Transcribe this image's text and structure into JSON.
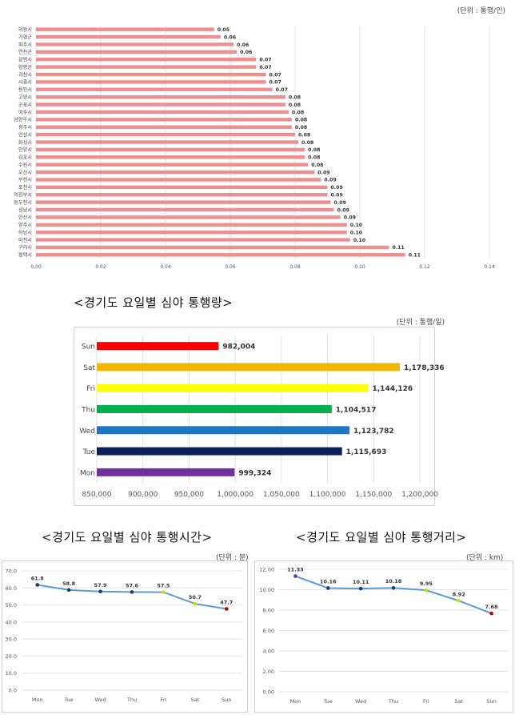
{
  "charts": {
    "city": {
      "unit": "(단위 : 통행/인)"
    },
    "dayVolume": {
      "title": "<경기도 요일별 심야 통행량>",
      "unit": "(단위 : 통행/일)"
    },
    "dayTime": {
      "title": "<경기도 요일별 심야 통행시간>",
      "unit": "(단위 : 분)"
    },
    "dayDist": {
      "title": "<경기도 요일별 심야 통행거리>",
      "unit": "(단위 : km)"
    }
  },
  "colors": {
    "cityBar": "#ef8e8e",
    "line": "#5b9bd5",
    "marker": "#2e4e8a"
  },
  "chart_data": [
    {
      "type": "bar",
      "orientation": "horizontal",
      "categories": [
        "의왕시",
        "가평군",
        "파주시",
        "연천군",
        "광명시",
        "양평군",
        "과천시",
        "시흥시",
        "용인시",
        "고양시",
        "군포시",
        "여주시",
        "남양주시",
        "광주시",
        "안성시",
        "화성시",
        "안양시",
        "김포시",
        "수원시",
        "오산시",
        "부천시",
        "포천시",
        "의정부시",
        "동두천시",
        "성남시",
        "안산시",
        "양주시",
        "하남시",
        "이천시",
        "구리시",
        "평택시"
      ],
      "values": [
        0.055,
        0.057,
        0.061,
        0.062,
        0.068,
        0.068,
        0.071,
        0.071,
        0.073,
        0.077,
        0.077,
        0.078,
        0.079,
        0.079,
        0.08,
        0.081,
        0.083,
        0.083,
        0.084,
        0.086,
        0.088,
        0.09,
        0.09,
        0.091,
        0.092,
        0.094,
        0.096,
        0.096,
        0.097,
        0.109,
        0.114
      ],
      "labels": [
        "0.05",
        "0.06",
        "0.06",
        "0.06",
        "0.07",
        "0.07",
        "0.07",
        "0.07",
        "0.07",
        "0.08",
        "0.08",
        "0.08",
        "0.08",
        "0.08",
        "0.08",
        "0.08",
        "0.08",
        "0.08",
        "0.08",
        "0.09",
        "0.09",
        "0.09",
        "0.09",
        "0.09",
        "0.09",
        "0.09",
        "0.10",
        "0.10",
        "0.10",
        "0.11",
        "0.11"
      ],
      "xlim": [
        0,
        0.14
      ],
      "xticks": [
        "0.00",
        "0.02",
        "0.04",
        "0.06",
        "0.08",
        "0.10",
        "0.12",
        "0.14"
      ]
    },
    {
      "type": "bar",
      "orientation": "horizontal",
      "categories": [
        "Sun",
        "Sat",
        "Fri",
        "Thu",
        "Wed",
        "Tue",
        "Mon"
      ],
      "values": [
        982004,
        1178336,
        1144126,
        1104517,
        1123782,
        1115693,
        999324
      ],
      "labels": [
        "982,004",
        "1,178,336",
        "1,144,126",
        "1,104,517",
        "1,123,782",
        "1,115,693",
        "999,324"
      ],
      "colors": [
        "#ff0000",
        "#f2b705",
        "#ffff00",
        "#00b050",
        "#1f77c4",
        "#0b1f5c",
        "#7030a0"
      ],
      "xlim": [
        850000,
        1200000
      ],
      "xticks": [
        "850,000",
        "900,000",
        "950,000",
        "1,000,000",
        "1,050,000",
        "1,100,000",
        "1,150,000",
        "1,200,000"
      ]
    },
    {
      "type": "line",
      "categories": [
        "Mon",
        "Tue",
        "Wed",
        "Thu",
        "Fri",
        "Sat",
        "Sun"
      ],
      "values": [
        61.8,
        58.8,
        57.9,
        57.6,
        57.5,
        50.7,
        47.7
      ],
      "labels": [
        "61.8",
        "58.8",
        "57.9",
        "57.6",
        "57.5",
        "50.7",
        "47.7"
      ],
      "markerColors": [
        "#1f3b70",
        "#1f3b70",
        "#1f3b70",
        "#1f3b70",
        "#c8e000",
        "#c8e000",
        "#c00000"
      ],
      "ylim": [
        0,
        70
      ],
      "yticks": [
        "0.0",
        "10.0",
        "20.0",
        "30.0",
        "40.0",
        "50.0",
        "60.0",
        "70.0"
      ]
    },
    {
      "type": "line",
      "categories": [
        "Mon",
        "Tue",
        "Wed",
        "Thu",
        "Fri",
        "Sat",
        "Sun"
      ],
      "values": [
        11.33,
        10.16,
        10.11,
        10.18,
        9.95,
        8.92,
        7.68
      ],
      "labels": [
        "11.33",
        "10.16",
        "10.11",
        "10.18",
        "9.95",
        "8.92",
        "7.68"
      ],
      "markerColors": [
        "#7030a0",
        "#1f3b70",
        "#1f3b70",
        "#1f3b70",
        "#c8e000",
        "#c8e000",
        "#c00000"
      ],
      "ylim": [
        0,
        12
      ],
      "yticks": [
        "0.00",
        "2.00",
        "4.00",
        "6.00",
        "8.00",
        "10.00",
        "12.00"
      ]
    }
  ]
}
